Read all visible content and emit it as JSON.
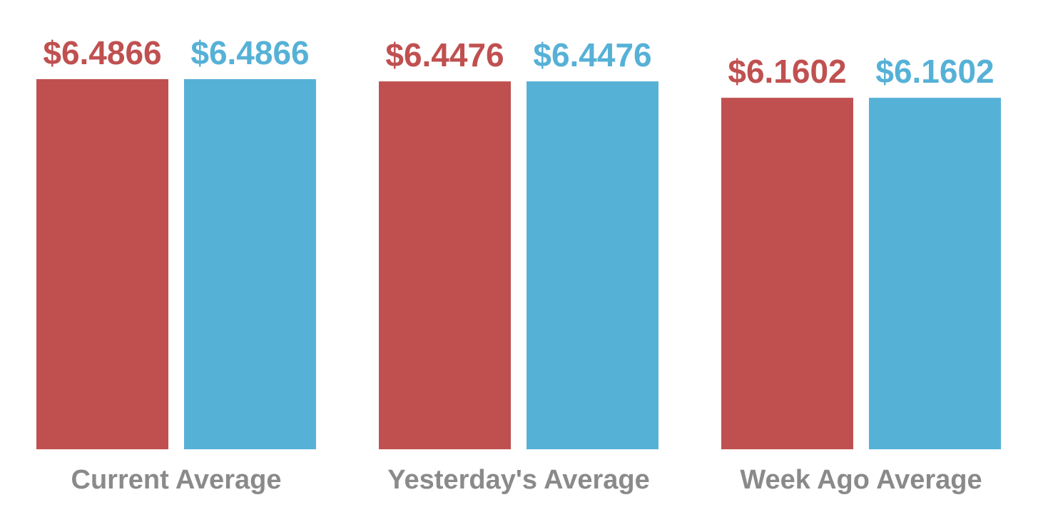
{
  "colors": {
    "red": "#c05050",
    "blue": "#56b1d7",
    "label": "#8a8a8a"
  },
  "chart_data": {
    "type": "bar",
    "categories": [
      "Current Average",
      "Yesterday's Average",
      "Week Ago Average"
    ],
    "series": [
      {
        "color": "#c05050",
        "values": [
          6.4866,
          6.4476,
          6.1602
        ],
        "labels": [
          "$6.4866",
          "$6.4476",
          "$6.1602"
        ]
      },
      {
        "color": "#56b1d7",
        "values": [
          6.4866,
          6.4476,
          6.1602
        ],
        "labels": [
          "$6.4866",
          "$6.4476",
          "$6.1602"
        ]
      }
    ],
    "ylim": [
      0,
      6.4866
    ],
    "grid": false,
    "legend": "none"
  }
}
